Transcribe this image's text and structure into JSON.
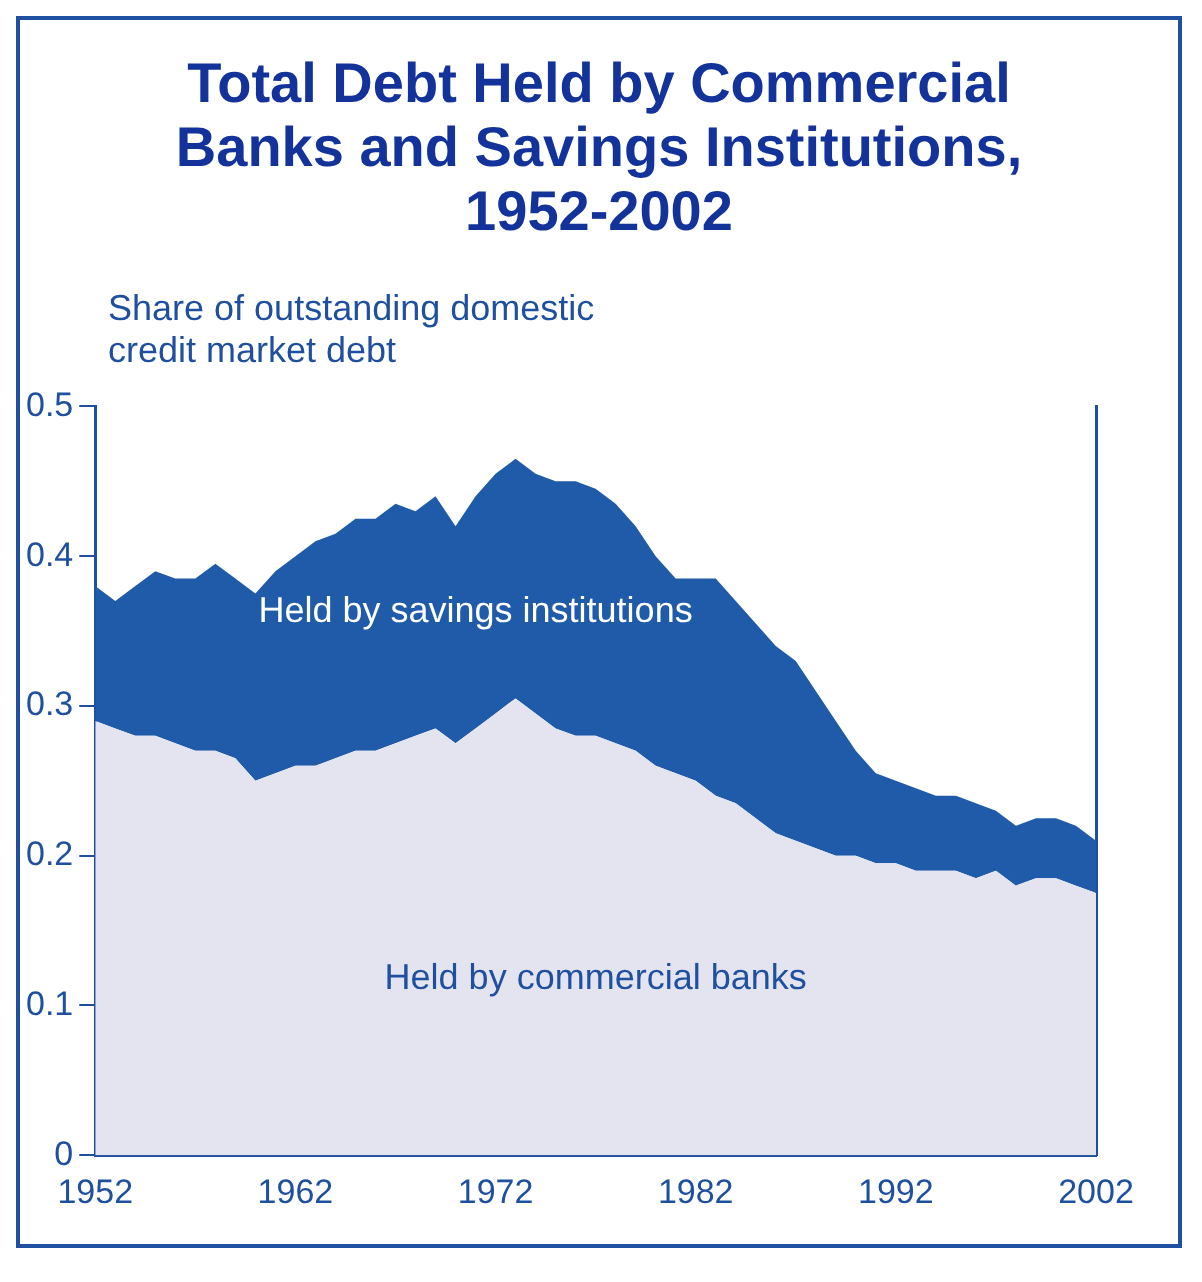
{
  "chart_data": {
    "type": "area",
    "title": "Total Debt Held by Commercial Banks and Savings Institutions, 1952-2002",
    "ylabel": "Share of outstanding domestic credit market debt",
    "stacked": true,
    "grid": false,
    "legend": false,
    "marker": "none",
    "x": [
      1952,
      1953,
      1954,
      1955,
      1956,
      1957,
      1958,
      1959,
      1960,
      1961,
      1962,
      1963,
      1964,
      1965,
      1966,
      1967,
      1968,
      1969,
      1970,
      1971,
      1972,
      1973,
      1974,
      1975,
      1976,
      1977,
      1978,
      1979,
      1980,
      1981,
      1982,
      1983,
      1984,
      1985,
      1986,
      1987,
      1988,
      1989,
      1990,
      1991,
      1992,
      1993,
      1994,
      1995,
      1996,
      1997,
      1998,
      1999,
      2000,
      2001,
      2002
    ],
    "series": [
      {
        "name": "Held by commercial banks",
        "color": "#e4e4f0",
        "values": [
          0.29,
          0.285,
          0.28,
          0.28,
          0.275,
          0.27,
          0.27,
          0.265,
          0.25,
          0.255,
          0.26,
          0.26,
          0.265,
          0.27,
          0.27,
          0.275,
          0.28,
          0.285,
          0.275,
          0.285,
          0.295,
          0.305,
          0.295,
          0.285,
          0.28,
          0.28,
          0.275,
          0.27,
          0.26,
          0.255,
          0.25,
          0.24,
          0.235,
          0.225,
          0.215,
          0.21,
          0.205,
          0.2,
          0.2,
          0.195,
          0.195,
          0.19,
          0.19,
          0.19,
          0.185,
          0.19,
          0.18,
          0.185,
          0.185,
          0.18,
          0.175
        ]
      },
      {
        "name": "Held by savings institutions",
        "color": "#1f5ba8",
        "values": [
          0.09,
          0.085,
          0.1,
          0.11,
          0.11,
          0.115,
          0.125,
          0.12,
          0.125,
          0.135,
          0.14,
          0.15,
          0.15,
          0.155,
          0.155,
          0.16,
          0.15,
          0.155,
          0.145,
          0.155,
          0.16,
          0.16,
          0.16,
          0.165,
          0.17,
          0.165,
          0.16,
          0.15,
          0.14,
          0.13,
          0.135,
          0.145,
          0.135,
          0.13,
          0.125,
          0.12,
          0.105,
          0.09,
          0.07,
          0.06,
          0.055,
          0.055,
          0.05,
          0.05,
          0.05,
          0.04,
          0.04,
          0.04,
          0.04,
          0.04,
          0.035
        ]
      }
    ],
    "xlim": [
      1952,
      2002
    ],
    "xticks": [
      1952,
      1962,
      1972,
      1982,
      1992,
      2002
    ],
    "ylim": [
      0,
      0.5
    ],
    "yticks": [
      0,
      0.1,
      0.2,
      0.3,
      0.4,
      0.5
    ]
  }
}
